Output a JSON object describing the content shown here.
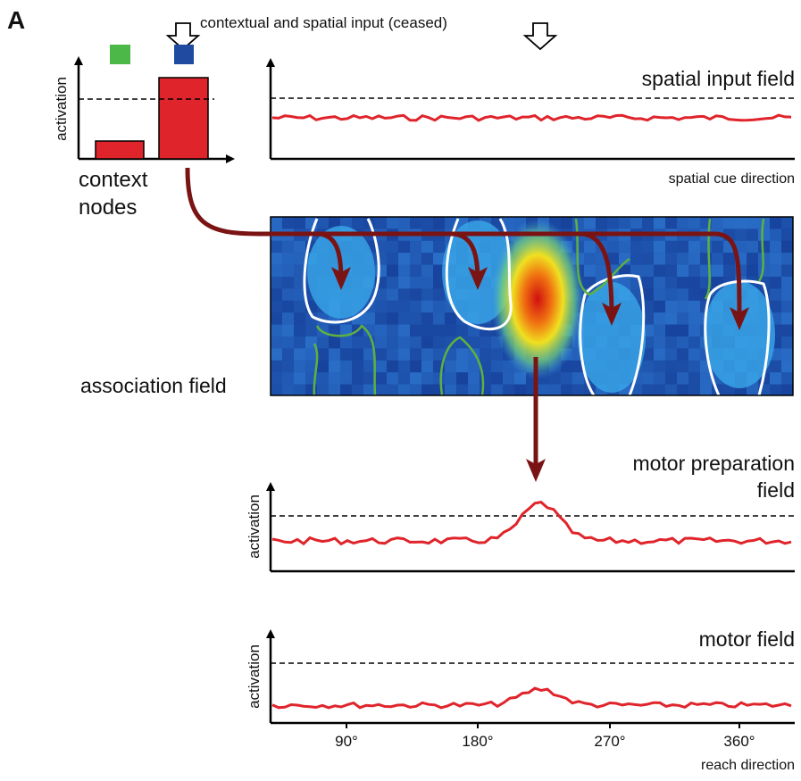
{
  "panel_label": "A",
  "input_label": "contextual and spatial input (ceased)",
  "context_panel": {
    "y_label": "activation",
    "title_line1": "context",
    "title_line2": "nodes"
  },
  "spatial_panel": {
    "title": "spatial input field",
    "x_label": "spatial cue direction"
  },
  "association_panel": {
    "title": "association field"
  },
  "motor_prep_panel": {
    "title_line1": "motor preparation",
    "title_line2": "field",
    "y_label": "activation"
  },
  "motor_panel": {
    "title": "motor field",
    "y_label": "activation",
    "x_ticks": [
      "90°",
      "180°",
      "270°",
      "360°"
    ],
    "x_label": "reach direction"
  }
}
